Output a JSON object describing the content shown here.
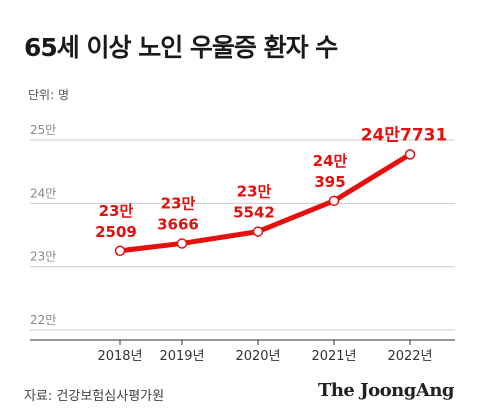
{
  "header": {
    "title": "65세 이상 노인 우울증 환자 수",
    "unit": "단위: 명"
  },
  "footer": {
    "source": "자료: 건강보험심사평가원",
    "brand": "The JoongAng"
  },
  "colors": {
    "line": "#e3100e",
    "label": "#e3100e",
    "grid": "#cccccc",
    "axis": "#333333"
  },
  "chart_data": {
    "type": "line",
    "title": "65세 이상 노인 우울증 환자 수",
    "categories": [
      "2018년",
      "2019년",
      "2020년",
      "2021년",
      "2022년"
    ],
    "values": [
      232509,
      233666,
      235542,
      240395,
      247731
    ],
    "data_labels": [
      [
        "23만",
        "2509"
      ],
      [
        "23만",
        "3666"
      ],
      [
        "23만",
        "5542"
      ],
      [
        "24만",
        "395"
      ],
      [
        "24만7731"
      ]
    ],
    "yticks": [
      {
        "value": 220000,
        "label": "22만"
      },
      {
        "value": 230000,
        "label": "23만"
      },
      {
        "value": 240000,
        "label": "24만"
      },
      {
        "value": 250000,
        "label": "25만"
      }
    ],
    "ylim": [
      220000,
      250000
    ],
    "grid": true,
    "legend": "none"
  }
}
